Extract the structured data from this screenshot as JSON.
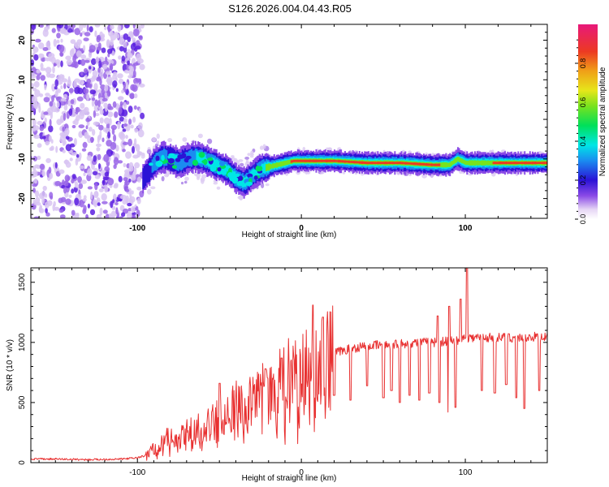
{
  "title": "S126.2026.004.04.43.R05",
  "colors": {
    "snr_line": "#e83030",
    "axis": "#000000",
    "noise": "#8a4ae6",
    "band_core": "#e8302c"
  },
  "chart_data": [
    {
      "type": "heatmap",
      "xlabel": "Height of straight line (km)",
      "ylabel": "Frequency (Hz)",
      "xlim": [
        -165,
        150
      ],
      "ylim": [
        -25,
        24
      ],
      "xticks": [
        -100,
        0,
        100
      ],
      "yticks": [
        -20,
        -10,
        0,
        10,
        20
      ],
      "colorbar": {
        "label": "Normalized spectral amplitude",
        "range": [
          0.0,
          1.0
        ],
        "ticks": [
          0.0,
          0.2,
          0.4,
          0.6,
          0.8
        ],
        "tick_labels": [
          "0.0",
          "0.2",
          "0.4",
          "0.6",
          "0.8"
        ]
      },
      "noise_region": {
        "x_range": [
          -165,
          -97
        ],
        "freq_range": [
          -25,
          24
        ],
        "amplitude": 0.2
      },
      "band_center": {
        "x": [
          -97,
          -90,
          -85,
          -80,
          -75,
          -70,
          -65,
          -60,
          -55,
          -50,
          -45,
          -40,
          -35,
          -30,
          -25,
          -20,
          -15,
          -10,
          -5,
          0,
          10,
          20,
          40,
          60,
          80,
          90,
          95,
          100,
          110,
          120,
          150
        ],
        "freq_hz": [
          -15,
          -11,
          -9.5,
          -10,
          -11,
          -10,
          -9.5,
          -10,
          -11,
          -12,
          -13,
          -15,
          -16,
          -14,
          -12.5,
          -12,
          -11.5,
          -11,
          -10.5,
          -10.5,
          -10.5,
          -10.5,
          -11,
          -11,
          -11.5,
          -11.5,
          -10,
          -11,
          -11,
          -11,
          -11
        ],
        "peak_amplitude": [
          0.25,
          0.35,
          0.35,
          0.3,
          0.35,
          0.4,
          0.45,
          0.45,
          0.45,
          0.5,
          0.55,
          0.5,
          0.45,
          0.5,
          0.6,
          0.7,
          0.8,
          0.85,
          0.9,
          0.9,
          0.9,
          0.95,
          0.95,
          0.95,
          0.9,
          0.85,
          0.65,
          0.8,
          0.85,
          0.9,
          0.95
        ]
      }
    },
    {
      "type": "line",
      "xlabel": "Height of straight line (km)",
      "ylabel": "SNR (10 * v/v)",
      "xlim": [
        -165,
        150
      ],
      "ylim": [
        0,
        1620
      ],
      "xticks": [
        -100,
        0,
        100
      ],
      "yticks": [
        0,
        500,
        1000,
        1500
      ],
      "series": [
        {
          "name": "SNR",
          "x": [
            -165,
            -150,
            -130,
            -110,
            -100,
            -95,
            -90,
            -85,
            -80,
            -75,
            -70,
            -65,
            -60,
            -55,
            -50,
            -45,
            -40,
            -35,
            -30,
            -25,
            -20,
            -15,
            -10,
            -5,
            0,
            5,
            10,
            15,
            20,
            25,
            30,
            40,
            50,
            60,
            70,
            80,
            90,
            95,
            100,
            110,
            120,
            130,
            140,
            150
          ],
          "y": [
            30,
            30,
            25,
            30,
            40,
            60,
            120,
            170,
            220,
            200,
            250,
            270,
            300,
            330,
            380,
            420,
            470,
            520,
            560,
            560,
            620,
            650,
            720,
            760,
            790,
            840,
            860,
            880,
            910,
            930,
            950,
            970,
            980,
            990,
            1000,
            1000,
            1010,
            1020,
            1040,
            1040,
            1040,
            1040,
            1045,
            1050
          ]
        }
      ],
      "spikes": [
        {
          "x": -50,
          "y": 660
        },
        {
          "x": -22,
          "y": 780
        },
        {
          "x": -12,
          "y": 870
        },
        {
          "x": 7,
          "y": 1310
        },
        {
          "x": 13,
          "y": 1210
        },
        {
          "x": 83,
          "y": 1220
        },
        {
          "x": 90,
          "y": 1300
        },
        {
          "x": 97,
          "y": 1360
        },
        {
          "x": 101,
          "y": 1620
        }
      ],
      "dips": [
        {
          "x": 20,
          "y": 560
        },
        {
          "x": 30,
          "y": 520
        },
        {
          "x": 40,
          "y": 640
        },
        {
          "x": 50,
          "y": 540
        },
        {
          "x": 55,
          "y": 600
        },
        {
          "x": 60,
          "y": 500
        },
        {
          "x": 66,
          "y": 560
        },
        {
          "x": 72,
          "y": 520
        },
        {
          "x": 78,
          "y": 580
        },
        {
          "x": 84,
          "y": 500
        },
        {
          "x": 90,
          "y": 420
        },
        {
          "x": 94,
          "y": 460
        },
        {
          "x": 110,
          "y": 600
        },
        {
          "x": 118,
          "y": 580
        },
        {
          "x": 125,
          "y": 650
        },
        {
          "x": 131,
          "y": 540
        },
        {
          "x": 136,
          "y": 450
        },
        {
          "x": 145,
          "y": 600
        }
      ]
    }
  ]
}
